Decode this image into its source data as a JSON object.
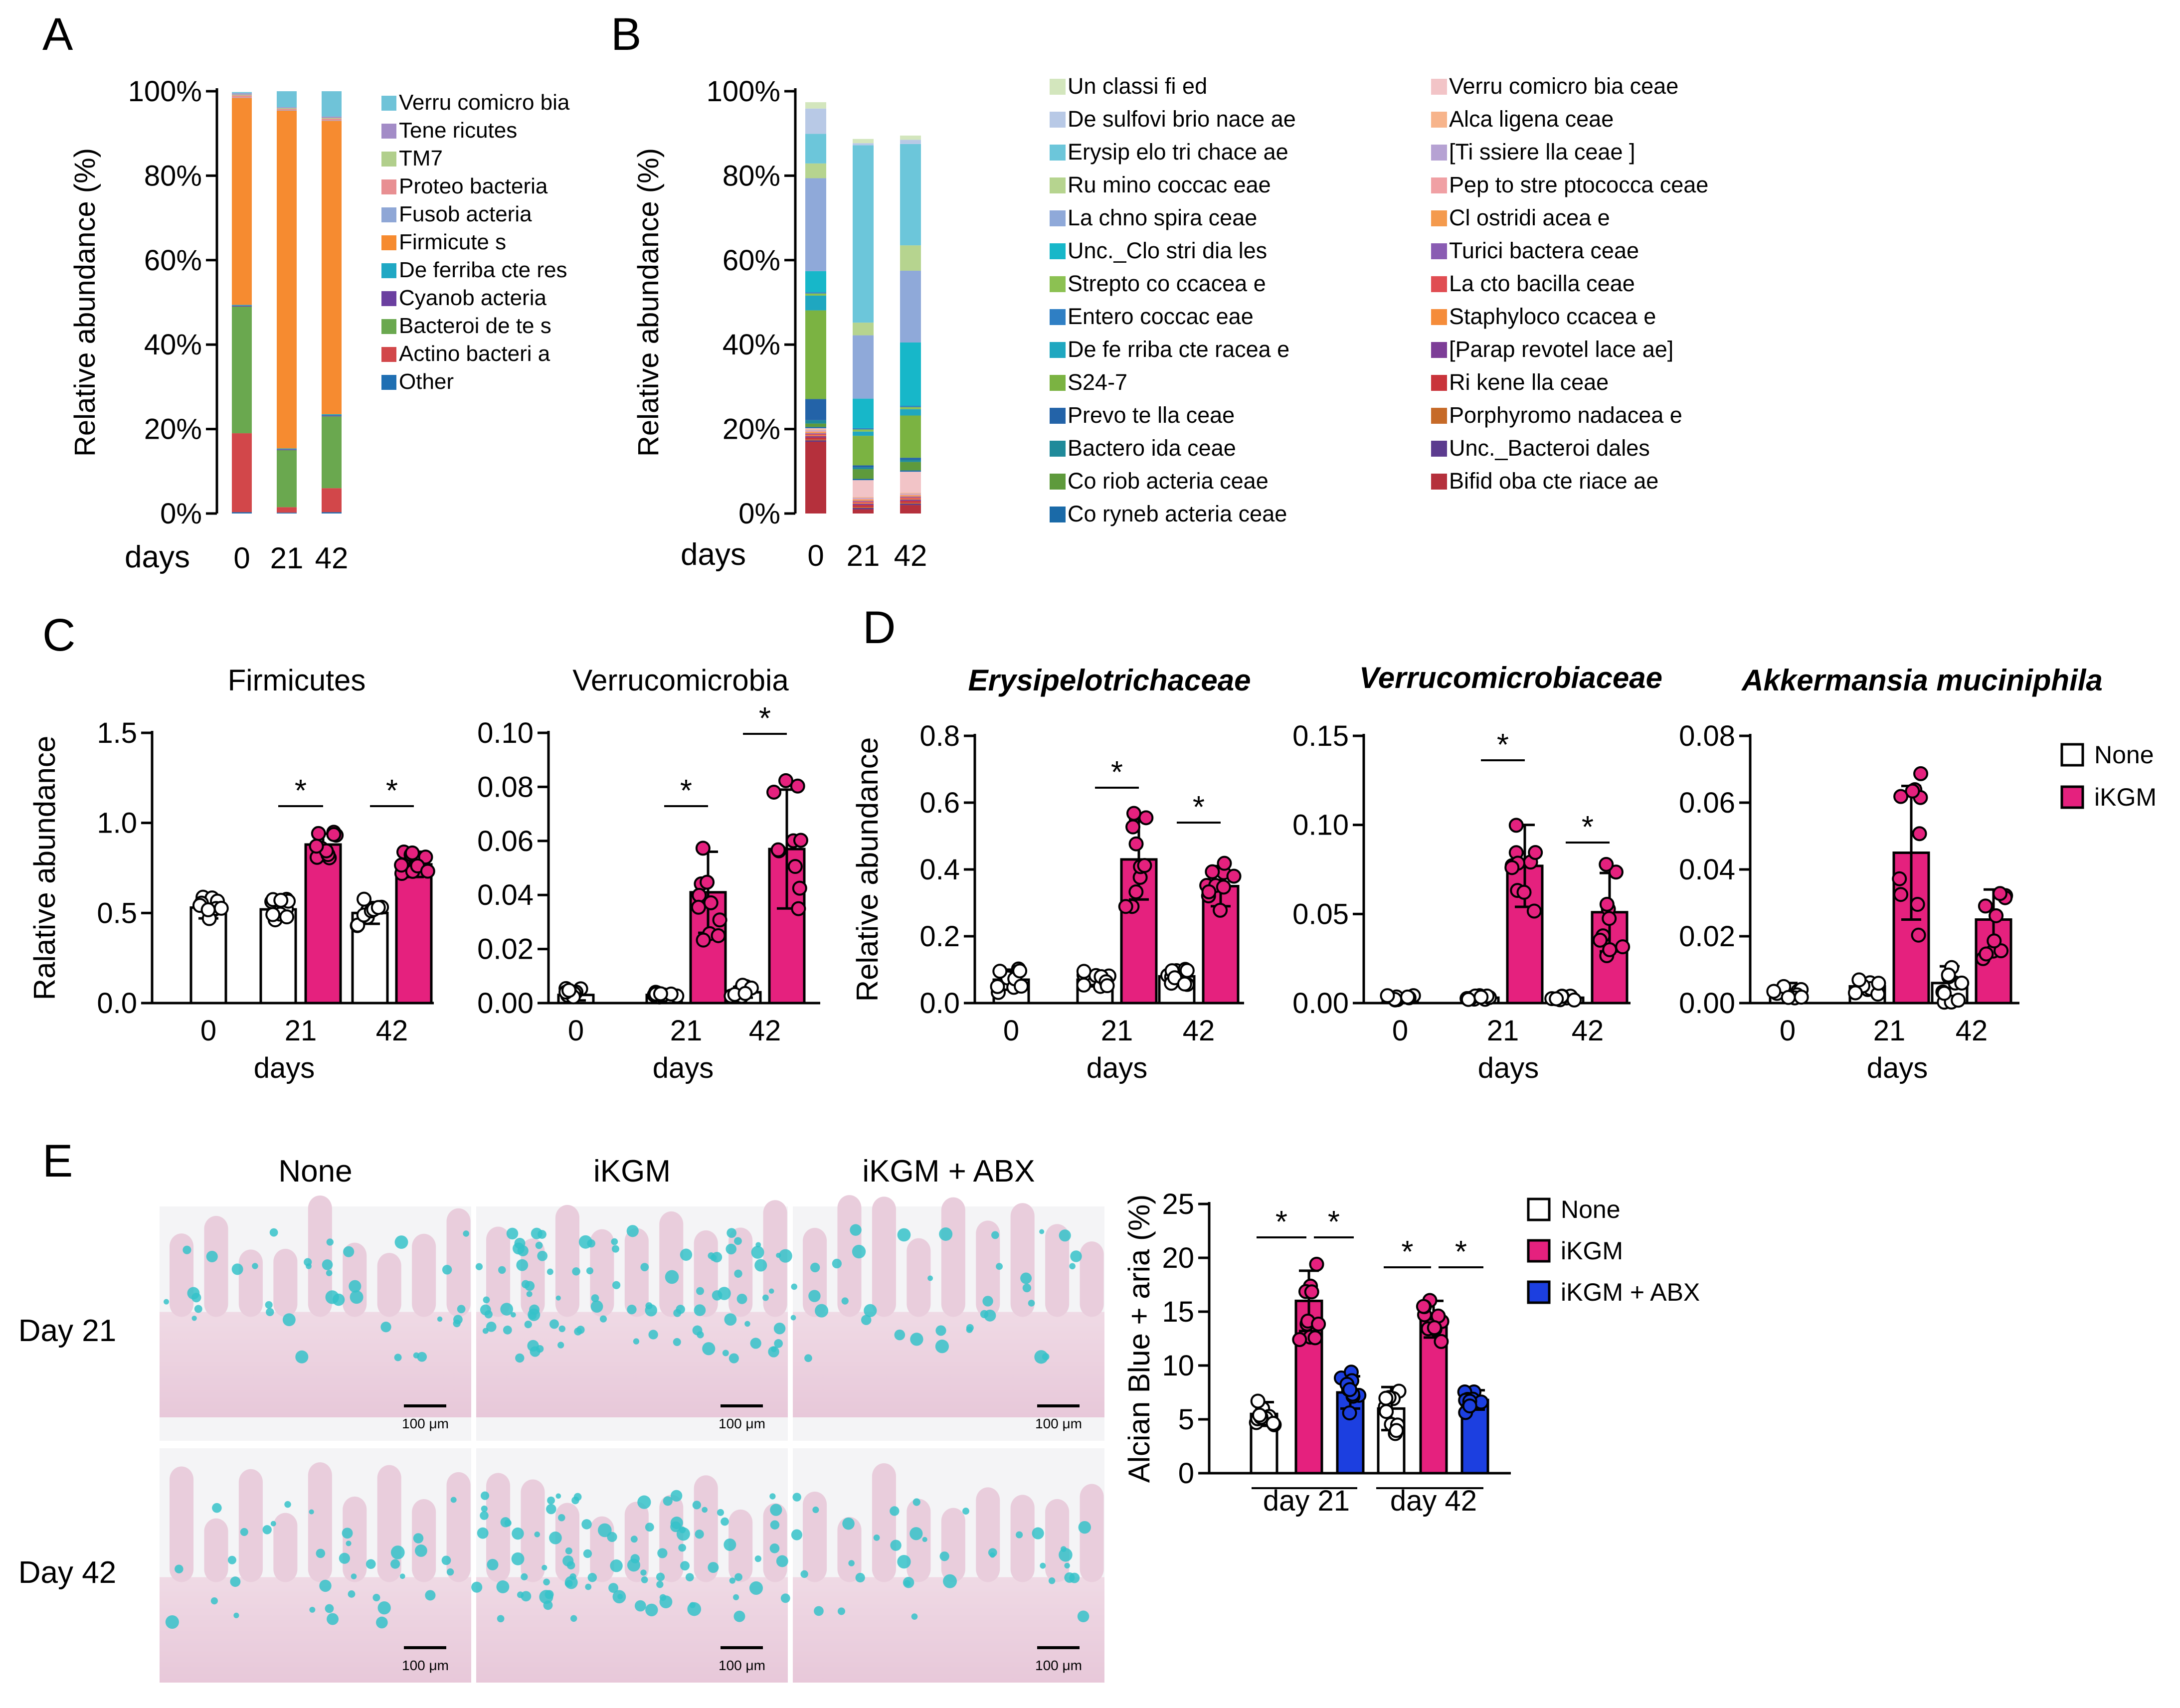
{
  "panel_letters": {
    "A": "A",
    "B": "B",
    "C": "C",
    "D": "D",
    "E": "E"
  },
  "colors": {
    "none": "#ffffff",
    "ikgm": "#e5217e",
    "abx": "#1c3fe0",
    "axis": "#000000"
  },
  "chart_data": [
    {
      "id": "A",
      "type": "bar",
      "stacked": true,
      "ylabel": "Relative abundance (%)",
      "xlabel": "days",
      "categories": [
        "0",
        "21",
        "42"
      ],
      "yticks": [
        "0%",
        "20%",
        "40%",
        "60%",
        "80%",
        "100%"
      ],
      "ylim": [
        0,
        100
      ],
      "series": [
        {
          "name": "Other",
          "color": "#1f6fb3",
          "values": [
            0.3,
            0.2,
            0.3
          ]
        },
        {
          "name": "Actino bacteri a",
          "color": "#d2474a",
          "values": [
            18.7,
            1.3,
            5.7
          ]
        },
        {
          "name": "Bacteroi de te s",
          "color": "#6aa84f",
          "values": [
            30,
            13.5,
            17
          ]
        },
        {
          "name": "Cyanob acteria",
          "color": "#6b3fa0",
          "values": [
            0.2,
            0.2,
            0.2
          ]
        },
        {
          "name": "De ferriba cte res",
          "color": "#20a8c4",
          "values": [
            0.2,
            0.2,
            0.3
          ]
        },
        {
          "name": "Firmicute s",
          "color": "#f68b30",
          "values": [
            49,
            80,
            69.5
          ]
        },
        {
          "name": "Fusob acteria",
          "color": "#8fa7d6",
          "values": [
            0.1,
            0.1,
            0.1
          ]
        },
        {
          "name": "Proteo bacteria",
          "color": "#e88f92",
          "values": [
            0.5,
            0.3,
            0.4
          ]
        },
        {
          "name": "TM7",
          "color": "#b1cf8c",
          "values": [
            0.2,
            0.2,
            0.2
          ]
        },
        {
          "name": "Tene ricutes",
          "color": "#a38cc7",
          "values": [
            0.3,
            0.2,
            0.3
          ]
        },
        {
          "name": "Verru comicro bia",
          "color": "#6fc3d8",
          "values": [
            0.3,
            3.8,
            6
          ]
        }
      ],
      "legend_labels": [
        "Verru comicro bia",
        "Tene ricutes",
        "TM7",
        "Proteo bacteria",
        "Fusob acteria",
        "Firmicute s",
        "De ferriba cte res",
        "Cyanob acteria",
        "Bacteroi de te s",
        "Actino bacteri a",
        "Other"
      ]
    },
    {
      "id": "B",
      "type": "bar",
      "stacked": true,
      "ylabel": "Relative abundance (%)",
      "xlabel": "days",
      "categories": [
        "0",
        "21",
        "42"
      ],
      "yticks": [
        "0%",
        "20%",
        "40%",
        "60%",
        "80%",
        "100%"
      ],
      "ylim": [
        0,
        100
      ],
      "series": [
        {
          "name": "Bifid oba cte riace ae",
          "color": "#b5303c",
          "values": [
            17,
            1,
            2
          ]
        },
        {
          "name": "Unc._Bacteroi dales",
          "color": "#5c3b8f",
          "values": [
            0.3,
            0.3,
            0.3
          ]
        },
        {
          "name": "Porphyromo nadacea e",
          "color": "#c66a28",
          "values": [
            0.2,
            0.2,
            0.2
          ]
        },
        {
          "name": "Ri kene lla ceae",
          "color": "#c9343b",
          "values": [
            0.5,
            0.5,
            0.5
          ]
        },
        {
          "name": "[Parap revotel lace ae]",
          "color": "#7d3d97",
          "values": [
            0.3,
            0.3,
            0.3
          ]
        },
        {
          "name": "Staphyloco ccacea e",
          "color": "#f58c3a",
          "values": [
            0.2,
            0.2,
            0.2
          ]
        },
        {
          "name": "La cto bacilla ceae",
          "color": "#e04d52",
          "values": [
            0.3,
            0.3,
            0.3
          ]
        },
        {
          "name": "Turici bactera ceae",
          "color": "#8a5cb3",
          "values": [
            0.2,
            0.2,
            0.2
          ]
        },
        {
          "name": "Cl ostridi acea e",
          "color": "#f49a4d",
          "values": [
            0.3,
            0.3,
            0.3
          ]
        },
        {
          "name": "Pep to stre ptococca ceae",
          "color": "#f0a0a4",
          "values": [
            0.2,
            0.2,
            0.2
          ]
        },
        {
          "name": "[Ti ssiere lla ceae ]",
          "color": "#b6a2d3",
          "values": [
            0.2,
            0.2,
            0.2
          ]
        },
        {
          "name": "Alca ligena ceae",
          "color": "#f7b48b",
          "values": [
            0.2,
            0.2,
            0.2
          ]
        },
        {
          "name": "Verru comicro bia ceae",
          "color": "#f2c4c7",
          "values": [
            0.3,
            4.0,
            5.0
          ]
        },
        {
          "name": "Co ryneb acteria ceae",
          "color": "#1a6aa8",
          "values": [
            0.3,
            0.3,
            0.3
          ]
        },
        {
          "name": "Co riob acteria ceae",
          "color": "#5e9a3c",
          "values": [
            0.8,
            2.3,
            2.0
          ]
        },
        {
          "name": "Bactero ida ceae",
          "color": "#1f8a9a",
          "values": [
            0.8,
            0.4,
            0.5
          ]
        },
        {
          "name": "Prevo te lla ceae",
          "color": "#2363a8",
          "values": [
            5,
            0.5,
            0.5
          ]
        },
        {
          "name": "S24-7",
          "color": "#7bb342",
          "values": [
            21,
            7,
            10
          ]
        },
        {
          "name": "De fe rriba cte racea e",
          "color": "#1fa7c0",
          "values": [
            3.5,
            1.0,
            1.5
          ]
        },
        {
          "name": "Strepto co ccacea e",
          "color": "#8cc152",
          "values": [
            0.5,
            0.5,
            0.5
          ]
        },
        {
          "name": "Entero coccac eae",
          "color": "#2f7fc4",
          "values": [
            0.3,
            0.3,
            0.3
          ]
        },
        {
          "name": "Unc._Clo stri dia les",
          "color": "#17b7c9",
          "values": [
            5,
            7,
            15
          ]
        },
        {
          "name": "La chno spira ceae",
          "color": "#8fa9d9",
          "values": [
            22,
            15,
            17
          ]
        },
        {
          "name": "Ru mino coccac eae",
          "color": "#b6d48f",
          "values": [
            3.5,
            3.0,
            6.0
          ]
        },
        {
          "name": "Erysip elo tri chace ae",
          "color": "#6cc6da",
          "values": [
            7,
            42,
            24
          ]
        },
        {
          "name": "De sulfovi brio nace ae",
          "color": "#b8c9e6",
          "values": [
            6,
            0.5,
            1.0
          ]
        },
        {
          "name": "Un classi fi ed",
          "color": "#d3e6bd",
          "values": [
            1.5,
            1.0,
            1.0
          ]
        }
      ],
      "legend_col1": [
        "Un classi fi ed",
        "De sulfovi brio nace ae",
        "Erysip elo tri chace ae",
        "Ru mino coccac eae",
        "La chno spira ceae",
        "Unc._Clo stri dia les",
        "Strepto co ccacea e",
        "Entero coccac eae",
        "De fe rriba cte racea e",
        "S24-7",
        "Prevo te lla ceae",
        "Bactero ida ceae",
        "Co riob acteria ceae",
        "Co ryneb acteria ceae"
      ],
      "legend_col2": [
        "Verru comicro bia ceae",
        "Alca ligena ceae",
        "[Ti ssiere lla ceae ]",
        "Pep to stre ptococca ceae",
        "Cl ostridi acea e",
        "Turici bactera ceae",
        "La cto bacilla ceae",
        "Staphyloco ccacea e",
        "[Parap revotel lace ae]",
        "Ri kene lla ceae",
        "Porphyromo nadacea e",
        "Unc._Bacteroi dales",
        "Bifid oba cte riace ae"
      ]
    },
    {
      "id": "C1",
      "type": "bar",
      "title": "Firmicutes",
      "ylabel": "Ralative abundance",
      "xlabel": "days",
      "xticks": [
        "0",
        "21",
        "42"
      ],
      "yticks": [
        "0.0",
        "0.5",
        "1.0",
        "1.5"
      ],
      "ylim": [
        0,
        1.5
      ],
      "bars": [
        {
          "day": "0",
          "group": "None",
          "mean": 0.53,
          "sd": 0.06
        },
        {
          "day": "21",
          "group": "None",
          "mean": 0.52,
          "sd": 0.05
        },
        {
          "day": "21",
          "group": "iKGM",
          "mean": 0.88,
          "sd": 0.06
        },
        {
          "day": "42",
          "group": "None",
          "mean": 0.5,
          "sd": 0.06
        },
        {
          "day": "42",
          "group": "iKGM",
          "mean": 0.77,
          "sd": 0.07
        }
      ],
      "significance": [
        {
          "day": "21",
          "label": "*"
        },
        {
          "day": "42",
          "label": "*"
        }
      ]
    },
    {
      "id": "C2",
      "type": "bar",
      "title": "Verrucomicrobia",
      "xlabel": "days",
      "xticks": [
        "0",
        "21",
        "42"
      ],
      "yticks": [
        "0.00",
        "0.02",
        "0.04",
        "0.06",
        "0.08",
        "0.10"
      ],
      "ylim": [
        0,
        0.1
      ],
      "bars": [
        {
          "day": "0",
          "group": "None",
          "mean": 0.003,
          "sd": 0.002
        },
        {
          "day": "21",
          "group": "None",
          "mean": 0.003,
          "sd": 0.001
        },
        {
          "day": "21",
          "group": "iKGM",
          "mean": 0.041,
          "sd": 0.015
        },
        {
          "day": "42",
          "group": "None",
          "mean": 0.004,
          "sd": 0.002
        },
        {
          "day": "42",
          "group": "iKGM",
          "mean": 0.057,
          "sd": 0.022
        }
      ],
      "significance": [
        {
          "day": "21",
          "label": "*"
        },
        {
          "day": "42",
          "label": "*"
        }
      ]
    },
    {
      "id": "D1",
      "type": "bar",
      "title": "Erysipelotrichaceae",
      "ylabel": "Relative abundance",
      "xlabel": "days",
      "xticks": [
        "0",
        "21",
        "42"
      ],
      "yticks": [
        "0.0",
        "0.2",
        "0.4",
        "0.6",
        "0.8"
      ],
      "ylim": [
        0,
        0.8
      ],
      "bars": [
        {
          "day": "0",
          "group": "None",
          "mean": 0.07,
          "sd": 0.03
        },
        {
          "day": "21",
          "group": "None",
          "mean": 0.07,
          "sd": 0.02
        },
        {
          "day": "21",
          "group": "iKGM",
          "mean": 0.43,
          "sd": 0.12
        },
        {
          "day": "42",
          "group": "None",
          "mean": 0.08,
          "sd": 0.02
        },
        {
          "day": "42",
          "group": "iKGM",
          "mean": 0.35,
          "sd": 0.06
        }
      ],
      "significance": [
        {
          "day": "21",
          "label": "*"
        },
        {
          "day": "42",
          "label": "*"
        }
      ]
    },
    {
      "id": "D2",
      "type": "bar",
      "title": "Verrucomicrobiaceae",
      "xlabel": "days",
      "xticks": [
        "0",
        "21",
        "42"
      ],
      "yticks": [
        "0.00",
        "0.05",
        "0.10",
        "0.15"
      ],
      "ylim": [
        0,
        0.15
      ],
      "bars": [
        {
          "day": "0",
          "group": "None",
          "mean": 0.003,
          "sd": 0.001
        },
        {
          "day": "21",
          "group": "None",
          "mean": 0.003,
          "sd": 0.001
        },
        {
          "day": "21",
          "group": "iKGM",
          "mean": 0.077,
          "sd": 0.023
        },
        {
          "day": "42",
          "group": "None",
          "mean": 0.003,
          "sd": 0.001
        },
        {
          "day": "42",
          "group": "iKGM",
          "mean": 0.051,
          "sd": 0.022
        }
      ],
      "significance": [
        {
          "day": "21",
          "label": "*"
        },
        {
          "day": "42",
          "label": "*"
        }
      ]
    },
    {
      "id": "D3",
      "type": "bar",
      "title": "Akkermansia muciniphila",
      "xlabel": "days",
      "xticks": [
        "0",
        "21",
        "42"
      ],
      "yticks": [
        "0.00",
        "0.02",
        "0.04",
        "0.06",
        "0.08"
      ],
      "ylim": [
        0,
        0.08
      ],
      "bars": [
        {
          "day": "0",
          "group": "None",
          "mean": 0.004,
          "sd": 0.002
        },
        {
          "day": "21",
          "group": "None",
          "mean": 0.005,
          "sd": 0.002
        },
        {
          "day": "21",
          "group": "iKGM",
          "mean": 0.045,
          "sd": 0.02
        },
        {
          "day": "42",
          "group": "None",
          "mean": 0.006,
          "sd": 0.005
        },
        {
          "day": "42",
          "group": "iKGM",
          "mean": 0.025,
          "sd": 0.009
        }
      ],
      "significance": []
    },
    {
      "id": "E",
      "type": "bar",
      "ylabel": "Alcian Blue + aria (%)",
      "xticks": [
        "day 21",
        "day 42"
      ],
      "yticks": [
        "0",
        "5",
        "10",
        "15",
        "20",
        "25"
      ],
      "ylim": [
        0,
        25
      ],
      "bars": [
        {
          "day": "day 21",
          "group": "None",
          "mean": 5.5,
          "sd": 1.1
        },
        {
          "day": "day 21",
          "group": "iKGM",
          "mean": 16.0,
          "sd": 2.8
        },
        {
          "day": "day 21",
          "group": "iKGM + ABX",
          "mean": 7.5,
          "sd": 1.5
        },
        {
          "day": "day 42",
          "group": "None",
          "mean": 6.0,
          "sd": 2.0
        },
        {
          "day": "day 42",
          "group": "iKGM",
          "mean": 14.3,
          "sd": 1.7
        },
        {
          "day": "day 42",
          "group": "iKGM + ABX",
          "mean": 6.8,
          "sd": 0.9
        }
      ],
      "significance": [
        {
          "day": "day 21",
          "label": "*"
        },
        {
          "day": "day 21",
          "label": "*"
        },
        {
          "day": "day 42",
          "label": "*"
        },
        {
          "day": "day 42",
          "label": "*"
        }
      ]
    }
  ],
  "legend_CD": [
    "None",
    "iKGM"
  ],
  "legend_E": [
    "None",
    "iKGM",
    "iKGM + ABX"
  ],
  "histology": {
    "col_titles": [
      "None",
      "iKGM",
      "iKGM + ABX"
    ],
    "row_labels": [
      "Day 21",
      "Day 42"
    ],
    "scalebar": "100 μm"
  }
}
